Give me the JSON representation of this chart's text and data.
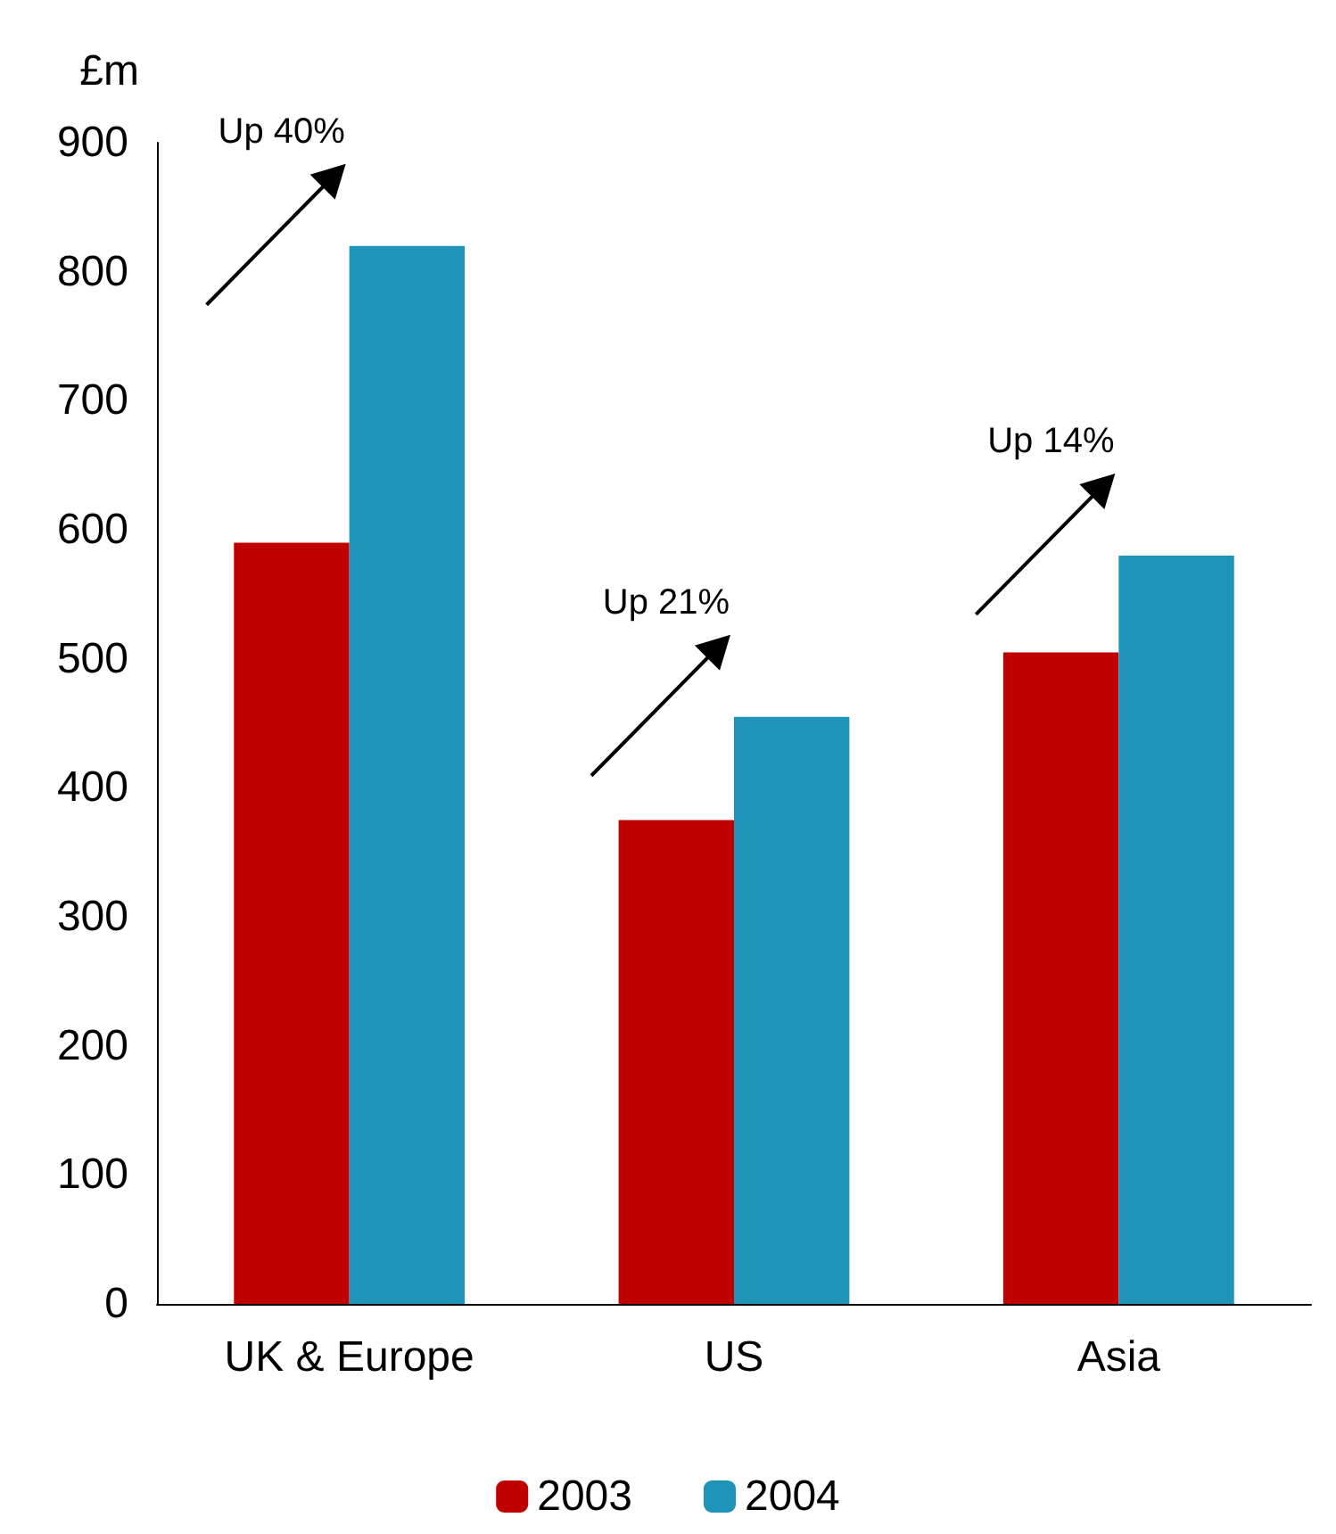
{
  "chart_data": {
    "type": "bar",
    "ylabel": "£m",
    "categories": [
      "UK & Europe",
      "US",
      "Asia"
    ],
    "series": [
      {
        "name": "2003",
        "color": "#c00000",
        "values": [
          590,
          375,
          505
        ]
      },
      {
        "name": "2004",
        "color": "#1f93b8",
        "values": [
          820,
          455,
          580
        ]
      }
    ],
    "ylim": [
      0,
      900
    ],
    "yticks": [
      0,
      100,
      200,
      300,
      400,
      500,
      600,
      700,
      800,
      900
    ],
    "annotations": [
      "Up 40%",
      "Up 21%",
      "Up 14%"
    ],
    "grid": false,
    "legend": "bottom"
  }
}
